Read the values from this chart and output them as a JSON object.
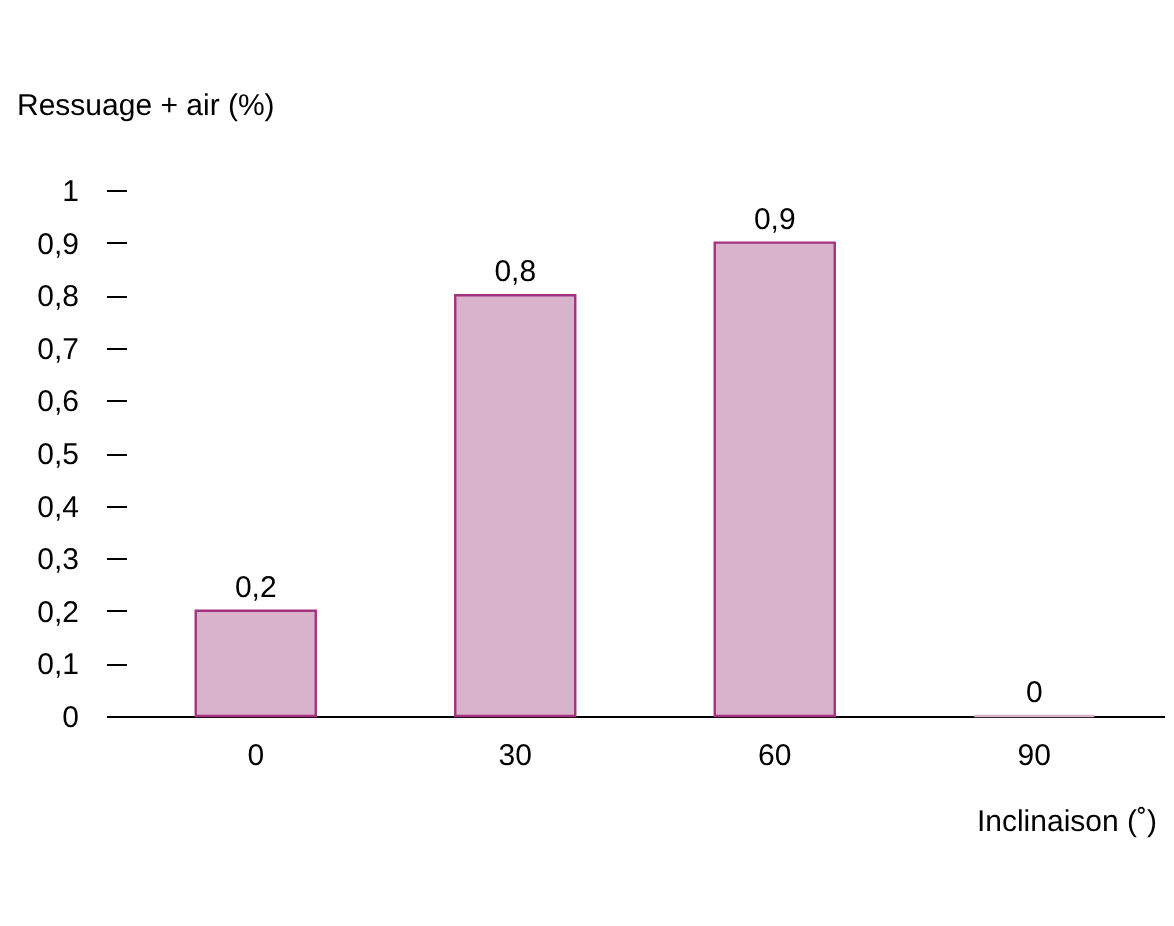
{
  "chart_data": {
    "type": "bar",
    "xlabel": "Inclinaison (˚)",
    "ylabel": "Ressuage + air (%)",
    "categories": [
      "0",
      "30",
      "60",
      "90"
    ],
    "series": [
      {
        "color": "#d9b3cb",
        "values": [
          0.2,
          0.8,
          0.9,
          0
        ]
      }
    ],
    "ylim": [
      0,
      1
    ],
    "yticks": [
      {
        "value": 0,
        "label": "0"
      },
      {
        "value": 0.1,
        "label": "0,1"
      },
      {
        "value": 0.2,
        "label": "0,2"
      },
      {
        "value": 0.3,
        "label": "0,3"
      },
      {
        "value": 0.4,
        "label": "0,4"
      },
      {
        "value": 0.5,
        "label": "0,5"
      },
      {
        "value": 0.6,
        "label": "0,6"
      },
      {
        "value": 0.7,
        "label": "0,7"
      },
      {
        "value": 0.8,
        "label": "0,8"
      },
      {
        "value": 0.9,
        "label": "0,9"
      },
      {
        "value": 1,
        "label": "1"
      }
    ],
    "value_labels": [
      "0,2",
      "0,8",
      "0,9",
      "0"
    ],
    "grid": false
  }
}
